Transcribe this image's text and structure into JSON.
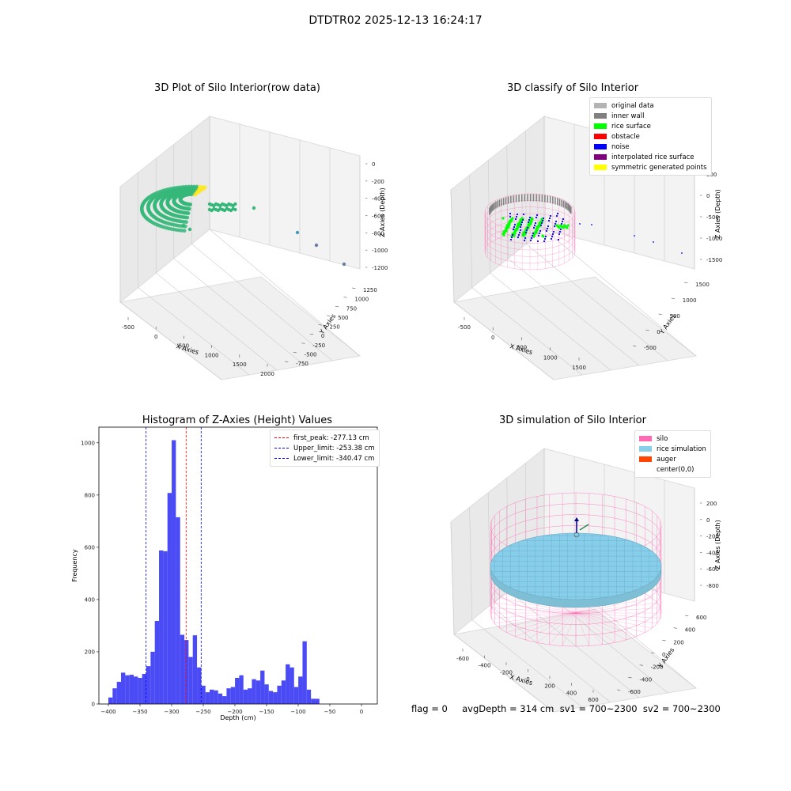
{
  "suptitle": "DTDTR02 2025-12-13 16:24:17",
  "footer": "flag = 0     avgDepth = 314 cm  sv1 = 700~2300  sv2 = 700~2300",
  "chart_data": [
    {
      "type": "scatter",
      "title": "3D Plot of Silo Interior(row data)",
      "xlabel": "X Axies",
      "ylabel": "Y Axies",
      "zlabel": "Z Axies (Depth)",
      "x_ticks": [
        "-500",
        "0",
        "500",
        "1000",
        "1500",
        "2000"
      ],
      "y_ticks": [
        "-750",
        "-500",
        "-250",
        "0",
        "250",
        "500",
        "750",
        "1000",
        "1250"
      ],
      "z_ticks": [
        "0",
        "-200",
        "-400",
        "-600",
        "-800",
        "-1000",
        "-1200"
      ],
      "colors": {
        "low": "#35b779",
        "high": "#fde725"
      }
    },
    {
      "type": "scatter",
      "title": "3D classify of Silo Interior",
      "xlabel": "X Axies",
      "ylabel": "Y Axies",
      "zlabel": "Z Axies (Depth)",
      "x_ticks": [
        "-500",
        "0",
        "500",
        "1000",
        "1500"
      ],
      "y_ticks": [
        "-500",
        "0",
        "500",
        "1000",
        "1500"
      ],
      "z_ticks": [
        "500",
        "0",
        "-500",
        "-1000",
        "-1500"
      ],
      "legend": [
        {
          "label": "original data",
          "color": "#b3b3b3"
        },
        {
          "label": "inner wall",
          "color": "#808080"
        },
        {
          "label": "rice surface",
          "color": "#00ff00"
        },
        {
          "label": "obstacle",
          "color": "#ff0000"
        },
        {
          "label": "noise",
          "color": "#0000ff"
        },
        {
          "label": "interpolated rice surface",
          "color": "#800080"
        },
        {
          "label": "symmetric generated points",
          "color": "#ffff00"
        }
      ]
    },
    {
      "type": "bar",
      "title": "Histogram of Z-Axies (Height) Values",
      "xlabel": "Depth (cm)",
      "ylabel": "Frequency",
      "bin_start": -400,
      "bin_width": 6.67,
      "values": [
        25,
        60,
        85,
        120,
        110,
        112,
        105,
        100,
        115,
        145,
        200,
        318,
        588,
        585,
        808,
        1010,
        715,
        265,
        245,
        180,
        263,
        140,
        70,
        45,
        55,
        52,
        40,
        30,
        60,
        65,
        100,
        110,
        55,
        60,
        95,
        90,
        128,
        75,
        50,
        45,
        70,
        90,
        152,
        140,
        65,
        105,
        240,
        55,
        20,
        20
      ],
      "xlim": [
        -415,
        25
      ],
      "ylim": [
        0,
        1060
      ],
      "x_ticks": [
        -400,
        -350,
        -300,
        -250,
        -200,
        -150,
        -100,
        -50,
        0
      ],
      "y_ticks": [
        0,
        200,
        400,
        600,
        800,
        1000
      ],
      "bar_color": "#4b4bf5",
      "lines": [
        {
          "label": "first_peak: -277.13 cm",
          "x": -277.13,
          "color": "#ff0000"
        },
        {
          "label": "Upper_limit: -253.38 cm",
          "x": -253.38,
          "color": "#0000ff"
        },
        {
          "label": "Lower_limit: -340.47 cm",
          "x": -340.47,
          "color": "#0000ff"
        }
      ]
    },
    {
      "type": "scatter",
      "title": "3D simulation of Silo Interior",
      "xlabel": "X Axies",
      "ylabel": "Y Axies",
      "zlabel": "Z Axies (Depth)",
      "x_ticks": [
        "-600",
        "-400",
        "-200",
        "0",
        "200",
        "400",
        "600"
      ],
      "y_ticks": [
        "-600",
        "-400",
        "-200",
        "0",
        "200",
        "400",
        "600"
      ],
      "z_ticks": [
        "200",
        "0",
        "-200",
        "-400",
        "-600",
        "-800"
      ],
      "legend": [
        {
          "label": "silo",
          "color": "#ff69b4"
        },
        {
          "label": "rice simulation",
          "color": "#87ceeb"
        },
        {
          "label": "auger",
          "color": "#ff4500"
        },
        {
          "label": "center(0,0)",
          "color": "#ffffff"
        }
      ]
    }
  ]
}
